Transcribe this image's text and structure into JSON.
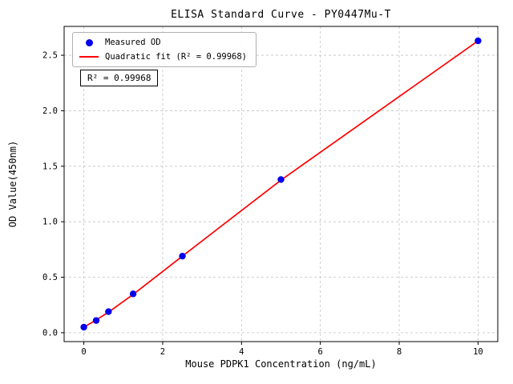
{
  "figure_title": "ELISA Standard Curve - PY0447Mu-T",
  "chart_data": {
    "type": "scatter",
    "title": "ELISA Standard Curve - PY0447Mu-T",
    "xlabel": "Mouse PDPK1 Concentration (ng/mL)",
    "ylabel": "OD Value(450nm)",
    "xlim": [
      -0.5,
      10.5
    ],
    "ylim": [
      -0.08,
      2.76
    ],
    "xticks": [
      0,
      2,
      4,
      6,
      8,
      10
    ],
    "xtick_labels": [
      "0",
      "2",
      "4",
      "6",
      "8",
      "10"
    ],
    "yticks": [
      0,
      0.5,
      1.0,
      1.5,
      2.0,
      2.5
    ],
    "ytick_labels": [
      "0.0",
      "0.5",
      "1.0",
      "1.5",
      "2.0",
      "2.5"
    ],
    "grid": true,
    "grid_style": "dashed",
    "legend_position": "upper left",
    "annotation": "R² = 0.99968",
    "series": [
      {
        "name": "Measured OD",
        "type": "scatter",
        "color": "#0000ee",
        "x": [
          0,
          0.313,
          0.625,
          1.25,
          2.5,
          5,
          10
        ],
        "y": [
          0.05,
          0.11,
          0.19,
          0.35,
          0.69,
          1.38,
          2.63
        ]
      },
      {
        "name": "Quadratic fit (R² = 0.99968)",
        "type": "line",
        "color": "#ff0000",
        "x": [
          0,
          0.313,
          0.625,
          1.25,
          2.5,
          5,
          10
        ],
        "y": [
          0.05,
          0.115,
          0.185,
          0.345,
          0.69,
          1.375,
          2.63
        ]
      }
    ],
    "colors": {
      "grid": "#c3c3c3",
      "spine": "#000000",
      "scatter": "#0000ee",
      "fit_line": "#ff0000",
      "background": "#ffffff"
    }
  }
}
